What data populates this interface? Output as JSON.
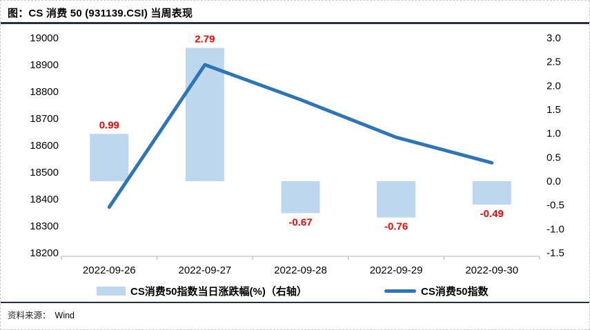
{
  "figure": {
    "title": "图：CS 消费 50 (931139.CSI) 当周表现",
    "source_label": "资料来源：",
    "source_value": "Wind",
    "legend": {
      "bar_label": "CS消费50指数当日涨跌幅(%)（右轴）",
      "line_label": "CS消费50指数"
    }
  },
  "colors": {
    "bar_fill": "#BDD7EE",
    "line_stroke": "#2E75B6",
    "value_label": "#FF0000",
    "axis_line": "#BFBFBF",
    "rule": "#262D3D"
  },
  "chart_data": {
    "type": "combo",
    "title": "图：CS 消费 50 (931139.CSI) 当周表现",
    "categories": [
      "2022-09-26",
      "2022-09-27",
      "2022-09-28",
      "2022-09-29",
      "2022-09-30"
    ],
    "series": [
      {
        "name": "CS消费50指数当日涨跌幅(%)（右轴）",
        "type": "bar",
        "axis": "right",
        "values": [
          0.99,
          2.79,
          -0.67,
          -0.76,
          -0.49
        ],
        "labels": [
          "0.99",
          "2.79",
          "-0.67",
          "-0.76",
          "-0.49"
        ],
        "color": "#BDD7EE",
        "label_color": "#FF0000"
      },
      {
        "name": "CS消费50指数",
        "type": "line",
        "axis": "left",
        "values": [
          18370,
          18900,
          18770,
          18630,
          18535
        ],
        "color": "#2E75B6"
      }
    ],
    "left_axis": {
      "tick_labels": [
        "19000",
        "18900",
        "18800",
        "18700",
        "18600",
        "18500",
        "18400",
        "18300",
        "18200"
      ],
      "min": 18200,
      "max": 19000
    },
    "right_axis": {
      "tick_labels": [
        "3.0",
        "2.5",
        "2.0",
        "1.5",
        "1.0",
        "0.5",
        "0.0",
        "-0.5",
        "-1.0",
        "-1.5"
      ],
      "min": -1.5,
      "max": 3.0
    },
    "grid": false,
    "legend_position": "bottom"
  }
}
